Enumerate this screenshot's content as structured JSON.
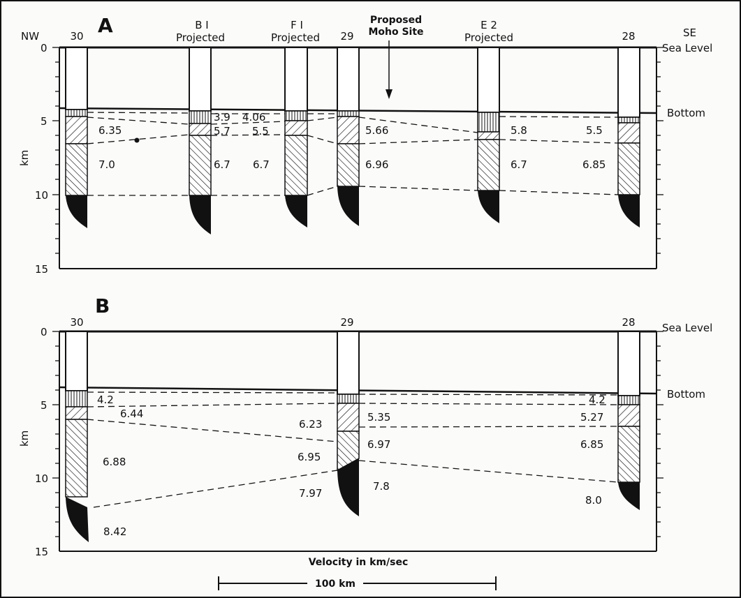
{
  "panel_a": {
    "letter": "A",
    "nw": "NW",
    "se": "SE",
    "sea_level": "Sea Level",
    "bottom": "Bottom",
    "km": "km",
    "y_ticks": [
      "0",
      "5",
      "10",
      "15"
    ],
    "proposed_line1": "Proposed",
    "proposed_line2": "Moho Site",
    "holes": [
      {
        "name": "30",
        "sub": ""
      },
      {
        "name": "B I",
        "sub": "Projected"
      },
      {
        "name": "F I",
        "sub": "Projected"
      },
      {
        "name": "29",
        "sub": ""
      },
      {
        "name": "E 2",
        "sub": "Projected"
      },
      {
        "name": "28",
        "sub": ""
      }
    ],
    "velocities": [
      "6.35",
      "7.0",
      "3.9",
      "4.06",
      "5.7",
      "5.5",
      "6.7",
      "6.7",
      "5.66",
      "6.96",
      "5.8",
      "6.7",
      "5.5",
      "6.85"
    ]
  },
  "panel_b": {
    "letter": "B",
    "sea_level": "Sea Level",
    "bottom": "Bottom",
    "km": "km",
    "y_ticks": [
      "0",
      "5",
      "10",
      "15"
    ],
    "holes": [
      {
        "name": "30"
      },
      {
        "name": "29"
      },
      {
        "name": "28"
      }
    ],
    "velocities": [
      "4.2",
      "6.44",
      "6.88",
      "8.42",
      "6.23",
      "5.35",
      "6.97",
      "6.95",
      "7.97",
      "7.8",
      "4.2",
      "5.27",
      "6.85",
      "8.0"
    ]
  },
  "footer": {
    "velocity_caption": "Velocity in km/sec",
    "scale_label": "100 km"
  }
}
